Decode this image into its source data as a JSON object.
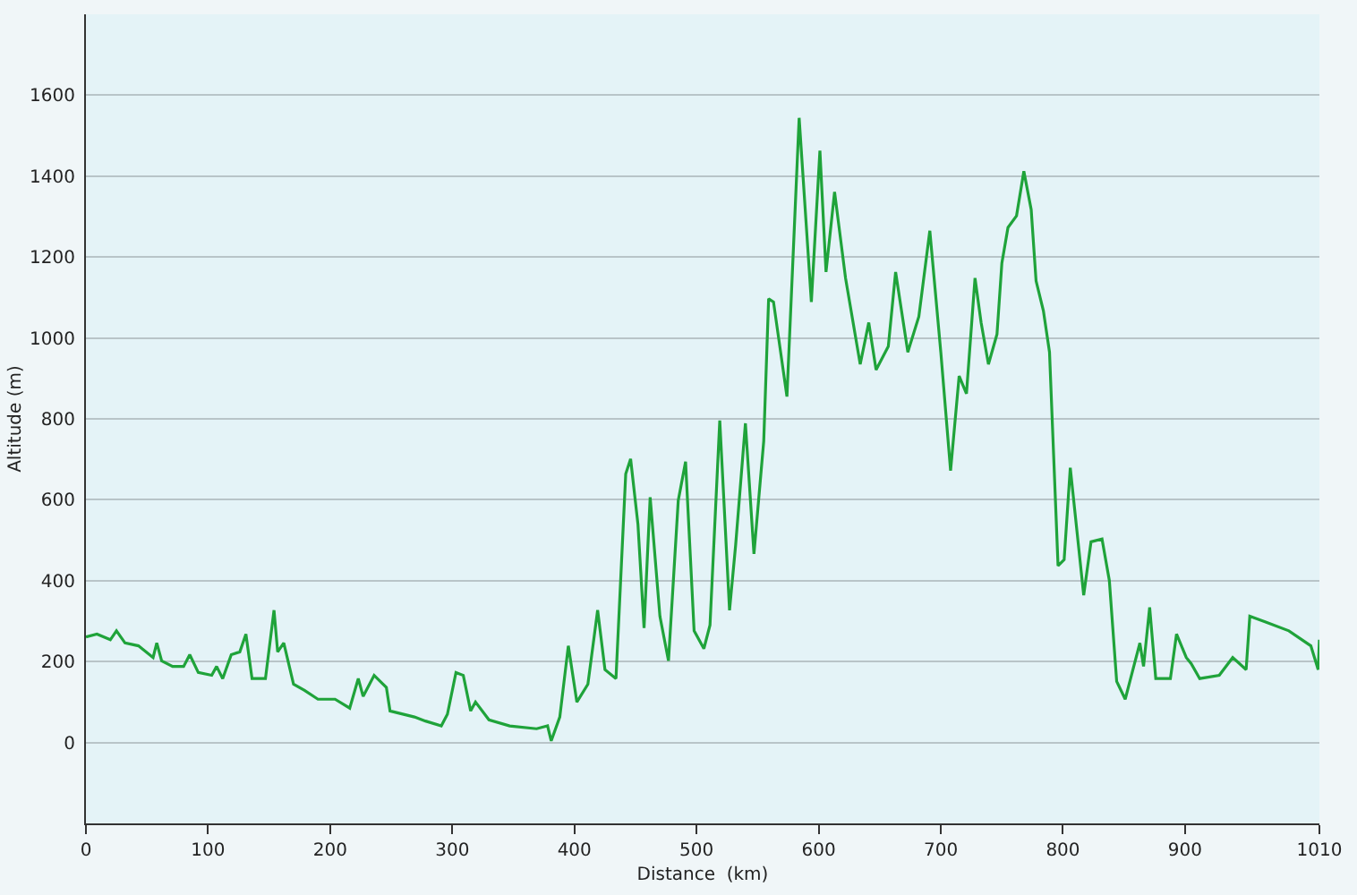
{
  "chart_data": {
    "type": "line",
    "xlabel": "Distance  (km)",
    "ylabel": "Altitude (m)",
    "xlim": [
      0,
      1010
    ],
    "xticks": [
      0,
      100,
      200,
      300,
      400,
      500,
      600,
      700,
      800,
      900,
      1010
    ],
    "ylim": [
      -200,
      1800
    ],
    "yticks": [
      0,
      200,
      400,
      600,
      800,
      1000,
      1200,
      1400,
      1600
    ],
    "grid": "y",
    "marker": "none",
    "line_style": "solid",
    "series": [
      {
        "color": "#1fa33a",
        "x": [
          0,
          9,
          20,
          25,
          32,
          43,
          55,
          58,
          62,
          71,
          80,
          85,
          92,
          103,
          107,
          112,
          119,
          126,
          131,
          136,
          147,
          154,
          157,
          162,
          170,
          179,
          190,
          204,
          216,
          223,
          227,
          236,
          246,
          249,
          269,
          278,
          291,
          296,
          303,
          309,
          315,
          319,
          330,
          347,
          369,
          378,
          381,
          388,
          395,
          402,
          411,
          419,
          425,
          434,
          442,
          446,
          452,
          457,
          462,
          470,
          477,
          485,
          491,
          498,
          506,
          511,
          519,
          527,
          532,
          540,
          547,
          555,
          559,
          563,
          574,
          584,
          594,
          601,
          606,
          613,
          622,
          634,
          641,
          647,
          657,
          663,
          673,
          682,
          691,
          700,
          708,
          715,
          721,
          728,
          733,
          739,
          746,
          750,
          755,
          762,
          768,
          774,
          778,
          784,
          789,
          796,
          801,
          806,
          817,
          823,
          832,
          838,
          844,
          851,
          863,
          866,
          871,
          876,
          888,
          893,
          901,
          905,
          912,
          928,
          939,
          950,
          953,
          966,
          985,
          1003,
          1009,
          1010
        ],
        "values": [
          261,
          268,
          254,
          276,
          246,
          239,
          210,
          246,
          202,
          188,
          188,
          217,
          173,
          166,
          188,
          158,
          217,
          224,
          268,
          158,
          158,
          327,
          224,
          246,
          144,
          129,
          107,
          107,
          85,
          158,
          114,
          166,
          136,
          78,
          63,
          53,
          41,
          70,
          173,
          166,
          78,
          100,
          56,
          41,
          34,
          41,
          4,
          63,
          239,
          100,
          144,
          327,
          180,
          158,
          664,
          701,
          540,
          283,
          606,
          312,
          202,
          598,
          694,
          276,
          232,
          290,
          796,
          327,
          488,
          789,
          466,
          745,
          1097,
          1089,
          855,
          1544,
          1089,
          1463,
          1163,
          1361,
          1148,
          935,
          1038,
          921,
          979,
          1163,
          965,
          1053,
          1265,
          965,
          672,
          906,
          862,
          1148,
          1038,
          935,
          1009,
          1185,
          1273,
          1302,
          1412,
          1317,
          1141,
          1067,
          965,
          437,
          452,
          679,
          364,
          496,
          503,
          400,
          151,
          107,
          246,
          188,
          334,
          158,
          158,
          268,
          210,
          195,
          158,
          166,
          210,
          180,
          312,
          298,
          276,
          239,
          180,
          254
        ]
      }
    ]
  }
}
